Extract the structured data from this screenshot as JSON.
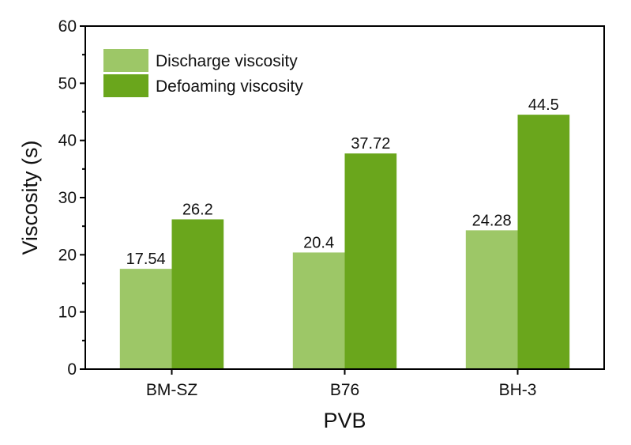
{
  "chart_data": {
    "type": "bar",
    "title": "",
    "xlabel": "PVB",
    "ylabel": "Viscosity (s)",
    "categories": [
      "BM-SZ",
      "B76",
      "BH-3"
    ],
    "series": [
      {
        "name": "Discharge viscosity",
        "values": [
          17.54,
          20.4,
          24.28
        ],
        "labels": [
          "17.54",
          "20.4",
          "24.28"
        ],
        "color": "#9dc767"
      },
      {
        "name": "Defoaming viscosity",
        "values": [
          26.2,
          37.72,
          44.5
        ],
        "labels": [
          "26.2",
          "37.72",
          "44.5"
        ],
        "color": "#6aa61c"
      }
    ],
    "ylim": [
      0,
      60
    ],
    "yticks": [
      "0",
      "10",
      "20",
      "30",
      "40",
      "50",
      "60"
    ],
    "legend_position": "top-left",
    "grid": false
  }
}
